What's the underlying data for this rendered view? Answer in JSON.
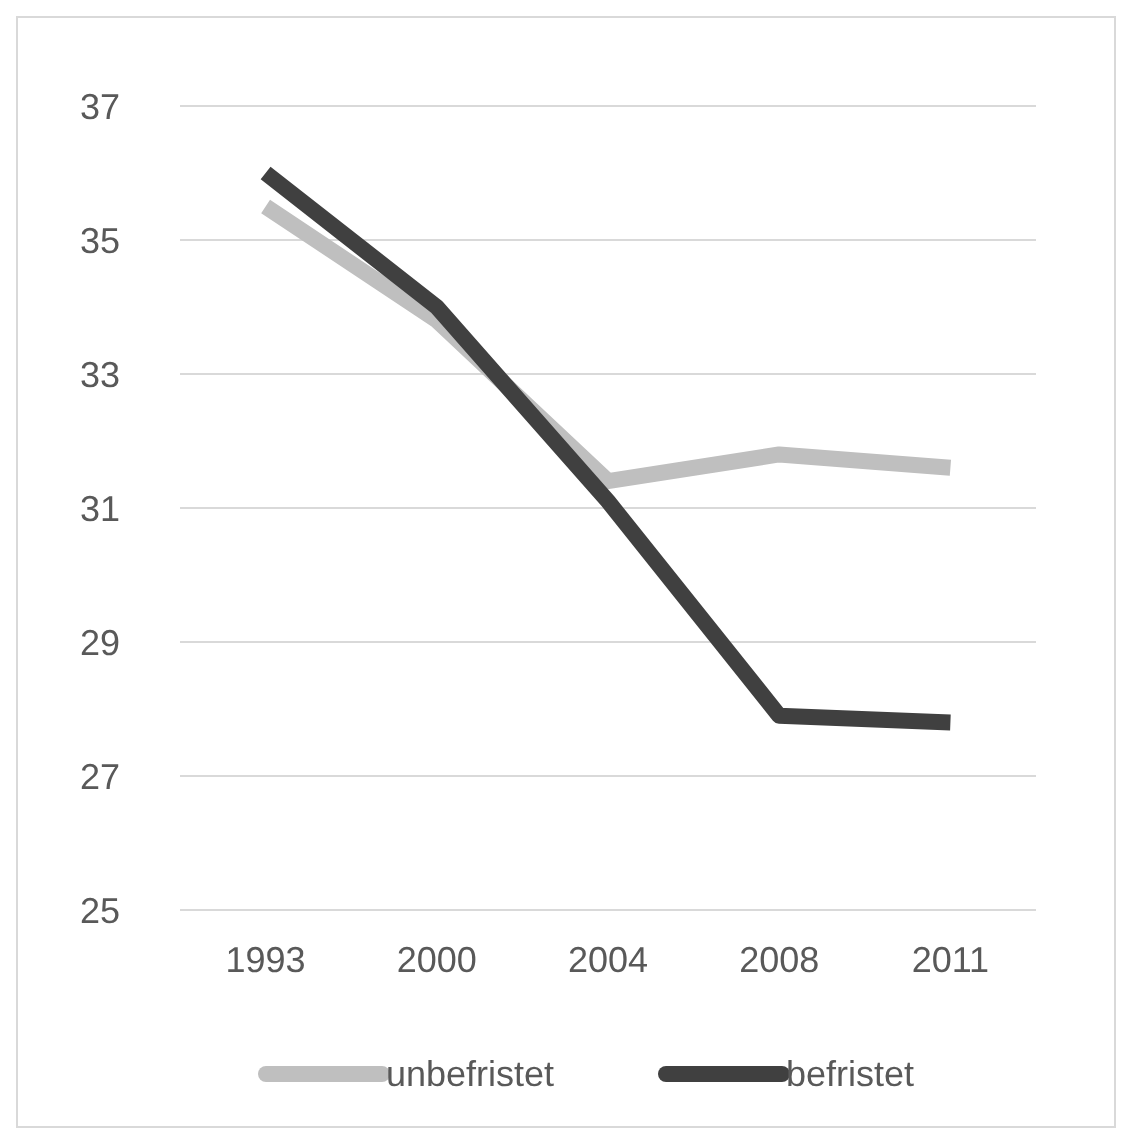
{
  "chart_data": {
    "type": "line",
    "categories": [
      "1993",
      "2000",
      "2004",
      "2008",
      "2011"
    ],
    "series": [
      {
        "name": "unbefristet",
        "color": "#bfbfbf",
        "values": [
          35.5,
          33.8,
          31.4,
          31.8,
          31.6
        ]
      },
      {
        "name": "befristet",
        "color": "#404040",
        "values": [
          36.0,
          34.0,
          31.1,
          27.9,
          27.8
        ]
      }
    ],
    "ylim": [
      25,
      37
    ],
    "yticks": [
      25,
      27,
      29,
      31,
      33,
      35,
      37
    ],
    "grid": "y",
    "legend": "bottom",
    "marker": "none",
    "line_style": "solid"
  }
}
